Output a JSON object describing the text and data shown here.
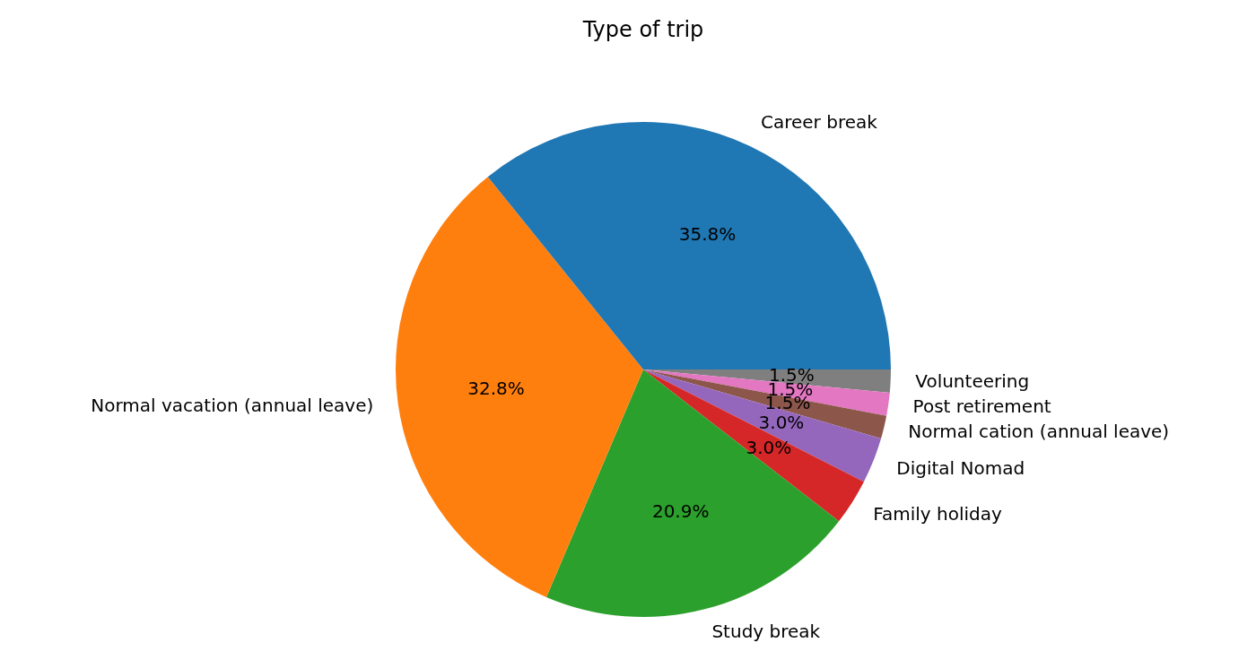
{
  "chart_data": {
    "type": "pie",
    "title": "Type of trip",
    "categories": [
      "Career break",
      "Normal vacation (annual leave)",
      "Study break",
      "Family holiday",
      "Digital Nomad",
      "Normal cation (annual leave)",
      "Post retirement",
      "Volunteering"
    ],
    "values": [
      35.8,
      32.8,
      20.9,
      3.0,
      3.0,
      1.5,
      1.5,
      1.5
    ],
    "value_labels": [
      "35.8%",
      "32.8%",
      "20.9%",
      "3.0%",
      "3.0%",
      "1.5%",
      "1.5%",
      "1.5%"
    ],
    "colors": [
      "#1f77b4",
      "#ff7f0e",
      "#2ca02c",
      "#d62728",
      "#9467bd",
      "#8c564b",
      "#e377c2",
      "#7f7f7f"
    ],
    "legend": false
  }
}
